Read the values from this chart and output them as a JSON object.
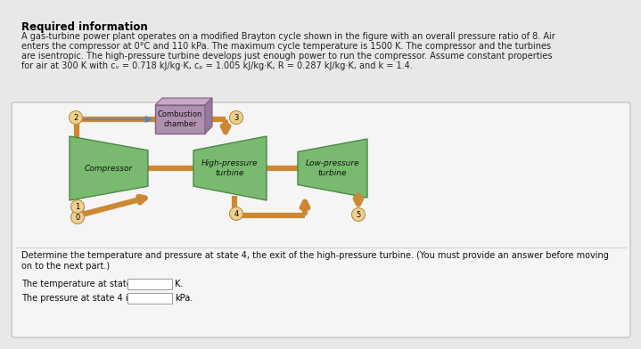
{
  "title": "Required information",
  "para_line1": "A gas-turbine power plant operates on a modified Brayton cycle shown in the figure with an overall pressure ratio of 8. Air",
  "para_line2": "enters the compressor at 0°C and 110 kPa. The maximum cycle temperature is 1500 K. The compressor and the turbines",
  "para_line3": "are isentropic. The high-pressure turbine develops just enough power to run the compressor. Assume constant properties",
  "para_line4": "for air at 300 K with cᵥ = 0.718 kJ/kg·K, cₚ = 1.005 kJ/kg·K, R = 0.287 kJ/kg·K, and k = 1.4.",
  "question_line1": "Determine the temperature and pressure at state 4, the exit of the high-pressure turbine. (You must provide an answer before moving",
  "question_line2": "on to the next part.)",
  "answer_line1": "The temperature at state 4 is",
  "answer_line2": "The pressure at state 4 is",
  "unit1": "K.",
  "unit2": "kPa.",
  "bg_color": "#e8e8e8",
  "box_bg": "#f5f5f5",
  "green_light": "#7aba70",
  "green_dark": "#4a8a44",
  "pipe_color": "#cc8833",
  "purple_light": "#b090b0",
  "purple_dark": "#806080",
  "circle_bg": "#f0d090",
  "circle_edge": "#b89040",
  "compressor_label": "Compressor",
  "hp_turbine_label": "High-pressure\nturbine",
  "lp_turbine_label": "Low-pressure\nturbine",
  "combustion_label": "Combustion\nchamber",
  "title_fontsize": 8.5,
  "body_fontsize": 7.0,
  "diagram_fontsize": 6.5,
  "question_fontsize": 7.0,
  "answer_fontsize": 7.0
}
